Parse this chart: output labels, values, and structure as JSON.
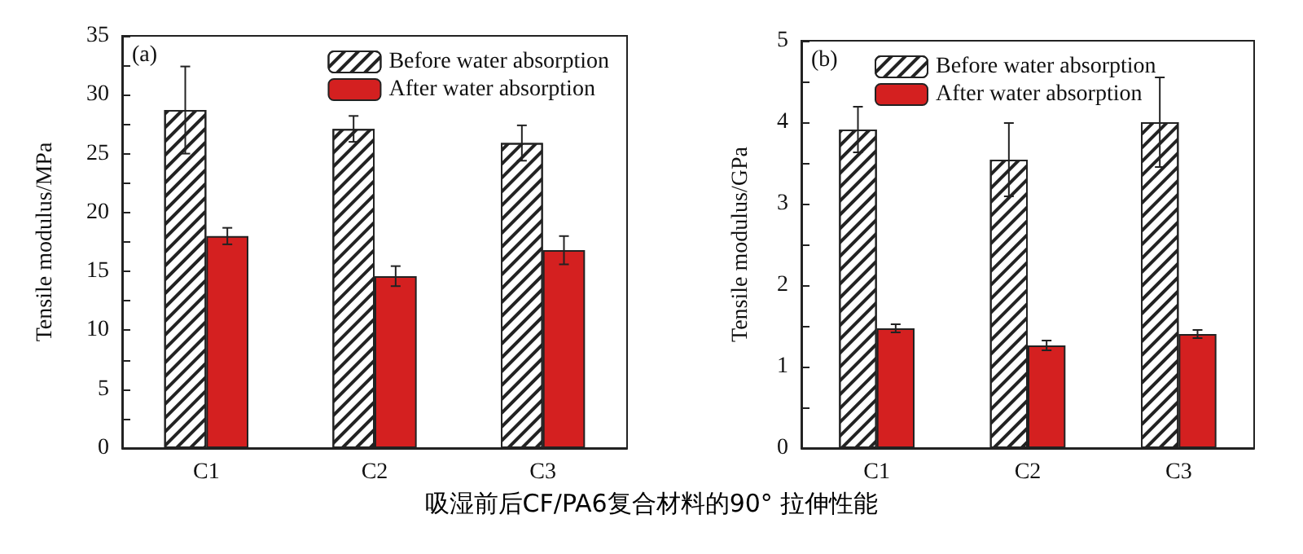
{
  "chart_data": [
    {
      "type": "bar",
      "ylabel": "Tensile modulus/MPa",
      "categories": [
        "C1",
        "C2",
        "C3"
      ],
      "annotations": [
        "(a)",
        "吸湿前后CF/PA6复合材料的90° 拉伸性能"
      ],
      "series": [
        {
          "name": "Before water absorption",
          "color": "#ffffff",
          "values": [
            28.7,
            27.1,
            25.9
          ],
          "errors": [
            3.7,
            1.1,
            1.5
          ]
        },
        {
          "name": "After water absorption",
          "color": "#d42020",
          "values": [
            18.0,
            14.6,
            16.8
          ],
          "errors": [
            0.7,
            0.85,
            1.2
          ]
        }
      ],
      "ylim": [
        0,
        35
      ],
      "yticks": [
        0,
        {
          "value": 2.5,
          "label": null
        },
        5,
        {
          "value": 7.5,
          "label": null
        },
        10,
        {
          "value": 12.5,
          "label": null
        },
        15,
        {
          "value": 17.5,
          "label": null
        },
        20,
        {
          "value": 22.5,
          "label": null
        },
        25,
        {
          "value": 27.5,
          "label": null
        },
        30,
        {
          "value": 32.5,
          "label": null
        },
        35
      ],
      "grid": false,
      "legend": "top right"
    },
    {
      "type": "bar",
      "ylabel": "Tensile modulus/GPa",
      "categories": [
        "C1",
        "C2",
        "C3"
      ],
      "annotations": [
        "(b)"
      ],
      "series": [
        {
          "name": "Before water absorption",
          "color": "#ffffff",
          "values": [
            3.91,
            3.54,
            4.0
          ],
          "errors": [
            0.28,
            0.45,
            0.55
          ]
        },
        {
          "name": "After water absorption",
          "color": "#d42020",
          "values": [
            1.47,
            1.26,
            1.4
          ],
          "errors": [
            0.05,
            0.06,
            0.05
          ]
        }
      ],
      "ylim": [
        0,
        5
      ],
      "yticks": [
        0,
        {
          "value": 0.5,
          "label": null
        },
        1,
        {
          "value": 1.5,
          "label": null
        },
        2,
        {
          "value": 2.5,
          "label": null
        },
        3,
        {
          "value": 3.5,
          "label": null
        },
        4,
        {
          "value": 4.5,
          "label": null
        },
        5
      ],
      "grid": false,
      "legend": "top left"
    }
  ]
}
